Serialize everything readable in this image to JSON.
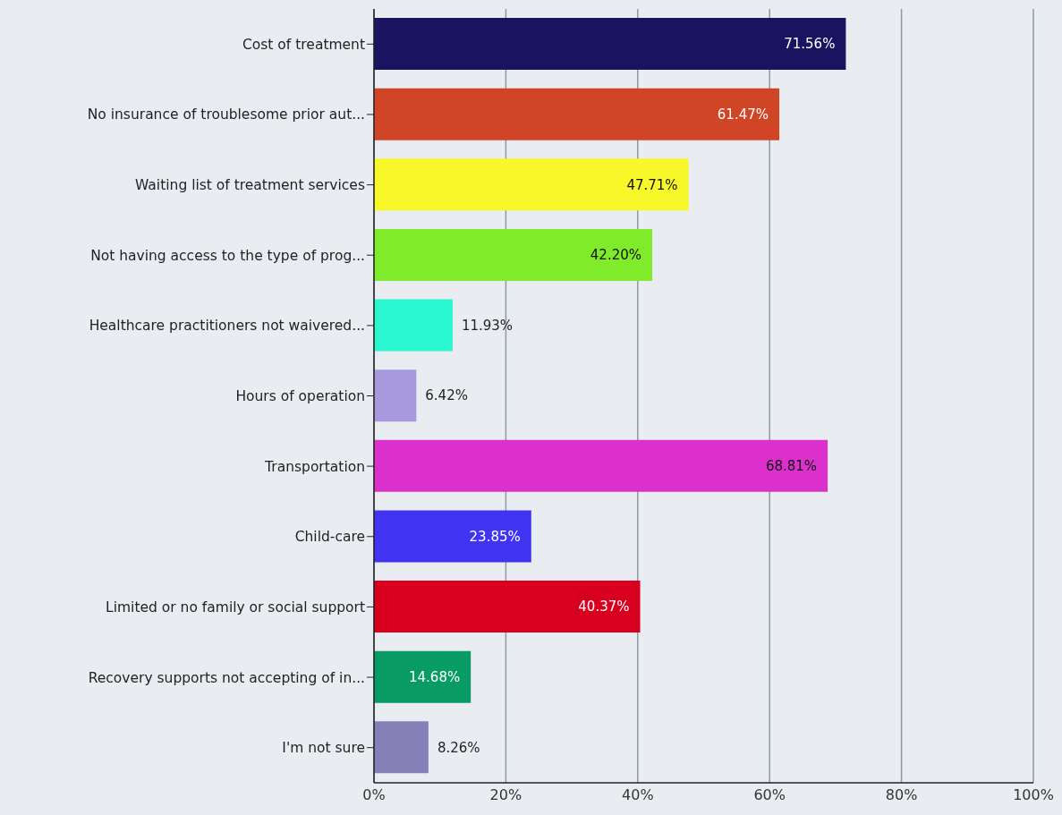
{
  "chart_data": {
    "type": "bar",
    "orientation": "horizontal",
    "categories": [
      "Cost of treatment",
      "No insurance of troublesome prior aut...",
      "Waiting list of treatment services",
      "Not having access to the type of prog...",
      "Healthcare practitioners not waivered...",
      "Hours of operation",
      "Transportation",
      "Child-care",
      "Limited or no family or social support",
      "Recovery supports not accepting of in...",
      "I'm not sure"
    ],
    "values": [
      71.56,
      61.47,
      47.71,
      42.2,
      11.93,
      6.42,
      68.81,
      23.85,
      40.37,
      14.68,
      8.26
    ],
    "value_labels": [
      "71.56%",
      "61.47%",
      "47.71%",
      "42.20%",
      "11.93%",
      "6.42%",
      "68.81%",
      "23.85%",
      "40.37%",
      "14.68%",
      "8.26%"
    ],
    "colors": [
      "#1a1460",
      "#d04526",
      "#f7f72a",
      "#80eb2a",
      "#2bf7d0",
      "#a898de",
      "#dc30cc",
      "#4033f2",
      "#d8001e",
      "#089b64",
      "#8680b8"
    ],
    "xlim": [
      0,
      100
    ],
    "xticks": [
      {
        "value": 0,
        "label": "0%"
      },
      {
        "value": 20,
        "label": "20%"
      },
      {
        "value": 40,
        "label": "40%"
      },
      {
        "value": 60,
        "label": "60%"
      },
      {
        "value": 80,
        "label": "80%"
      },
      {
        "value": 100,
        "label": "100%"
      }
    ],
    "grid": "x"
  }
}
